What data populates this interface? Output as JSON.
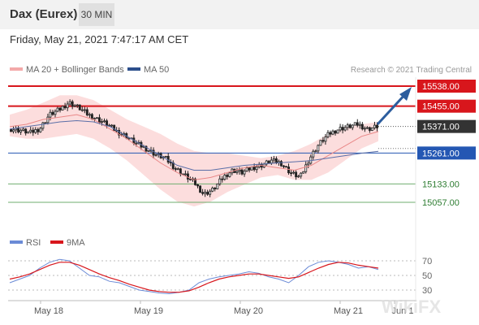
{
  "header": {
    "title": "Dax (Eurex)",
    "timeframe": "30 MIN"
  },
  "datetime": "Friday, May 21, 2021 7:47:17 AM CET",
  "legend": {
    "bb": "MA 20 + Bollinger Bands",
    "ma50": "MA 50",
    "rsi": "RSI",
    "ma9": "9MA"
  },
  "credit": "Research © 2021 Trading Central",
  "watermark": "WikiFX",
  "colors": {
    "resistance": "#d8161c",
    "pivot": "#333333",
    "support": "#2457b3",
    "support_green": "#6fae6f",
    "bb_fill": "#fbd5d5",
    "ma20": "#e98888",
    "ma50": "#5b6fa8",
    "arrow": "#2c5d9e",
    "rsi": "#6b8bd6",
    "rsi_ma": "#d8161c"
  },
  "chart_data": {
    "type": "candlestick",
    "x_labels": [
      "May 18",
      "May 19",
      "May 20",
      "May 21",
      "Jun 1"
    ],
    "levels": [
      {
        "value": "15538.00",
        "kind": "resistance"
      },
      {
        "value": "15455.00",
        "kind": "resistance"
      },
      {
        "value": "15371.00",
        "kind": "pivot"
      },
      {
        "value": "15261.00",
        "kind": "support"
      },
      {
        "value": "15133.00",
        "kind": "support_green"
      },
      {
        "value": "15057.00",
        "kind": "support_green"
      }
    ],
    "close_path": [
      15360,
      15355,
      15345,
      15362,
      15420,
      15440,
      15470,
      15450,
      15420,
      15400,
      15380,
      15350,
      15330,
      15300,
      15280,
      15255,
      15240,
      15200,
      15170,
      15140,
      15090,
      15110,
      15160,
      15190,
      15180,
      15200,
      15210,
      15230,
      15220,
      15180,
      15160,
      15240,
      15300,
      15340,
      15360,
      15370,
      15380,
      15360,
      15371
    ],
    "bb_upper": [
      15420,
      15440,
      15470,
      15500,
      15500,
      15480,
      15440,
      15400,
      15370,
      15340,
      15300,
      15270,
      15260,
      15260,
      15250,
      15240,
      15250,
      15270,
      15300,
      15340,
      15370,
      15380,
      15390
    ],
    "bb_lower": [
      15330,
      15320,
      15320,
      15330,
      15340,
      15320,
      15280,
      15230,
      15170,
      15110,
      15060,
      15040,
      15060,
      15100,
      15130,
      15160,
      15170,
      15150,
      15150,
      15180,
      15230,
      15280,
      15310
    ],
    "ma20": [
      15370,
      15380,
      15400,
      15410,
      15420,
      15400,
      15360,
      15320,
      15270,
      15220,
      15180,
      15150,
      15160,
      15180,
      15200,
      15210,
      15200,
      15190,
      15210,
      15250,
      15290,
      15330,
      15350
    ],
    "ma50": [
      15360,
      15370,
      15380,
      15390,
      15395,
      15390,
      15370,
      15330,
      15290,
      15250,
      15210,
      15190,
      15190,
      15200,
      15210,
      15215,
      15220,
      15225,
      15230,
      15240,
      15250,
      15260,
      15268
    ],
    "rsi": {
      "ticks": [
        "70",
        "50",
        "30"
      ],
      "values": [
        40,
        45,
        50,
        60,
        68,
        72,
        70,
        60,
        50,
        48,
        42,
        40,
        35,
        30,
        28,
        26,
        25,
        27,
        30,
        40,
        45,
        48,
        50,
        52,
        55,
        53,
        48,
        45,
        40,
        50,
        62,
        68,
        70,
        68,
        65,
        60,
        62,
        58
      ],
      "ma9": [
        45,
        48,
        52,
        58,
        64,
        68,
        68,
        64,
        58,
        52,
        47,
        43,
        38,
        34,
        30,
        28,
        27,
        27,
        29,
        34,
        40,
        45,
        48,
        50,
        52,
        52,
        50,
        48,
        46,
        48,
        54,
        60,
        65,
        68,
        67,
        64,
        62,
        60
      ]
    }
  }
}
